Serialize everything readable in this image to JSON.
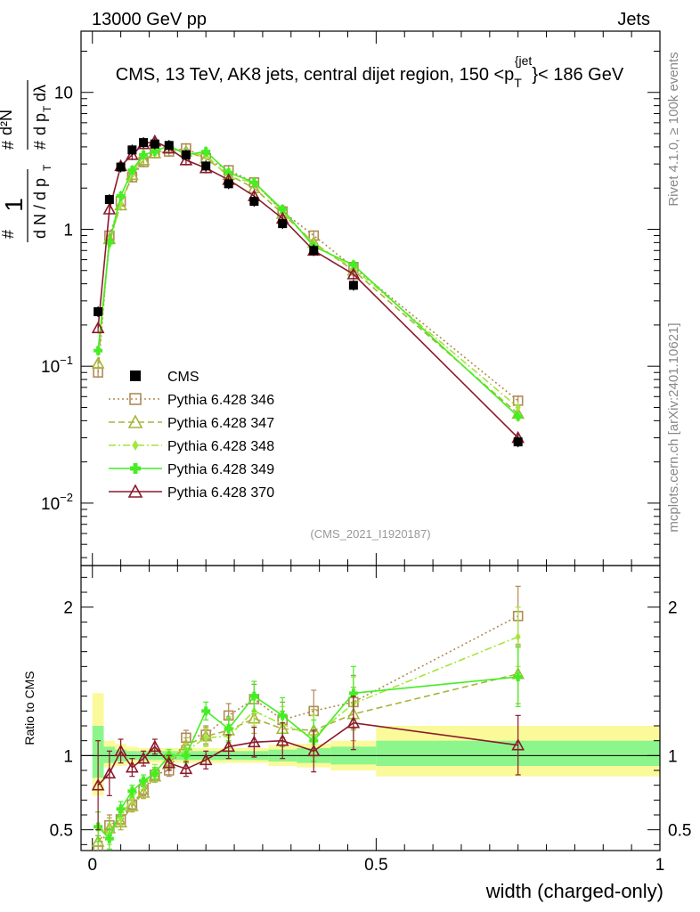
{
  "header": {
    "left": "13000 GeV pp",
    "right": "Jets"
  },
  "side": {
    "rivet": "Rivet 4.1.0, ≥ 100k events",
    "mcplots": "mcplots.cern.ch [arXiv:2401.10621]"
  },
  "colors": {
    "CMS": "#000000",
    "p346": "#b08a55",
    "p347": "#a8b43a",
    "p348": "#a4e63c",
    "p349": "#44ee22",
    "p370": "#8b1a2c",
    "band_inner": "#8cf58c",
    "band_outer": "#fafa9a"
  },
  "chart_data": [
    {
      "type": "line",
      "panel": "main",
      "title": "CMS, 13 TeV, AK8 jets, central dijet region, 150 <p_T^{jet}< 186 GeV",
      "title_parts": {
        "pre": "CMS, 13 TeV, AK8 jets, central dijet region, 150 <p",
        "sub": "T",
        "sup": "{jet",
        "post": "}< 186 GeV"
      },
      "watermark": "(CMS_2021_I1920187)",
      "xlabel": "width (charged-only)",
      "ylabel": "1/dN/dp_T  d²N/dp_T dλ",
      "ylabel_parts": {
        "hash": "#",
        "one": "1",
        "dN": "d N / d p",
        "T": "T",
        "d2N": "d²N",
        "dpT": "d p",
        "dl": "dλ"
      },
      "xlim": [
        -0.02,
        1.0
      ],
      "yscale": "log",
      "ylim": [
        0.0035,
        28
      ],
      "yticks": [
        {
          "value": 0.01,
          "label": "10",
          "exp": "−2"
        },
        {
          "value": 0.1,
          "label": "10",
          "exp": "−1"
        },
        {
          "value": 1,
          "label": "1",
          "exp": ""
        },
        {
          "value": 10,
          "label": "10",
          "exp": ""
        }
      ],
      "series": [
        {
          "key": "CMS",
          "name": "CMS",
          "x": [
            0.01,
            0.03,
            0.05,
            0.07,
            0.09,
            0.11,
            0.135,
            0.165,
            0.2,
            0.24,
            0.285,
            0.335,
            0.39,
            0.46,
            0.75
          ],
          "y": [
            0.25,
            1.65,
            2.85,
            3.8,
            4.3,
            4.2,
            4.1,
            3.5,
            2.9,
            2.15,
            1.6,
            1.1,
            0.7,
            0.39,
            0.028
          ]
        },
        {
          "key": "p346",
          "name": "Pythia 6.428 346",
          "x": [
            0.01,
            0.03,
            0.05,
            0.07,
            0.09,
            0.11,
            0.135,
            0.165,
            0.2,
            0.24,
            0.285,
            0.335,
            0.39,
            0.46,
            0.75
          ],
          "y": [
            0.09,
            0.9,
            1.6,
            2.4,
            3.1,
            3.6,
            3.7,
            3.9,
            3.3,
            2.7,
            2.2,
            1.35,
            0.9,
            0.53,
            0.056
          ]
        },
        {
          "key": "p347",
          "name": "Pythia 6.428 347",
          "x": [
            0.01,
            0.03,
            0.05,
            0.07,
            0.09,
            0.11,
            0.135,
            0.165,
            0.2,
            0.24,
            0.285,
            0.335,
            0.39,
            0.46,
            0.75
          ],
          "y": [
            0.105,
            0.85,
            1.5,
            2.5,
            3.2,
            3.6,
            3.9,
            3.7,
            3.3,
            2.5,
            2.0,
            1.3,
            0.8,
            0.5,
            0.045
          ]
        },
        {
          "key": "p348",
          "name": "Pythia 6.428 348",
          "x": [
            0.01,
            0.03,
            0.05,
            0.07,
            0.09,
            0.11,
            0.135,
            0.165,
            0.2,
            0.24,
            0.285,
            0.335,
            0.39,
            0.46,
            0.75
          ],
          "y": [
            0.13,
            0.78,
            1.55,
            2.6,
            3.4,
            3.8,
            4.0,
            3.6,
            3.5,
            2.4,
            2.2,
            1.35,
            0.78,
            0.52,
            0.05
          ]
        },
        {
          "key": "p349",
          "name": "Pythia 6.428 349",
          "x": [
            0.01,
            0.03,
            0.05,
            0.07,
            0.09,
            0.11,
            0.135,
            0.165,
            0.2,
            0.24,
            0.285,
            0.335,
            0.39,
            0.46,
            0.75
          ],
          "y": [
            0.13,
            0.8,
            1.75,
            2.7,
            3.5,
            3.7,
            4.1,
            3.5,
            3.7,
            2.6,
            2.2,
            1.4,
            0.75,
            0.55,
            0.043
          ]
        },
        {
          "key": "p370",
          "name": "Pythia 6.428 370",
          "x": [
            0.01,
            0.03,
            0.05,
            0.07,
            0.09,
            0.11,
            0.135,
            0.165,
            0.2,
            0.24,
            0.285,
            0.335,
            0.39,
            0.46,
            0.75
          ],
          "y": [
            0.19,
            1.4,
            2.9,
            3.5,
            4.2,
            4.4,
            3.9,
            3.2,
            2.8,
            2.3,
            1.75,
            1.2,
            0.7,
            0.47,
            0.03
          ]
        }
      ]
    },
    {
      "type": "line",
      "panel": "ratio",
      "ylabel": "Ratio to CMS",
      "xlabel": "width (charged-only)",
      "xlim": [
        -0.02,
        1.0
      ],
      "ylim": [
        0.36,
        2.28
      ],
      "yticks": [
        {
          "value": 0.5,
          "label": "0.5"
        },
        {
          "value": 1,
          "label": "1"
        },
        {
          "value": 2,
          "label": "2"
        }
      ],
      "xticks": [
        {
          "value": 0,
          "label": "0"
        },
        {
          "value": 0.5,
          "label": "0.5"
        },
        {
          "value": 1,
          "label": "1"
        }
      ],
      "bands": [
        {
          "x0": 0.0,
          "x1": 0.02,
          "inner": [
            0.85,
            1.2
          ],
          "outer": [
            0.73,
            1.42
          ]
        },
        {
          "x0": 0.02,
          "x1": 0.04,
          "inner": [
            0.95,
            1.06
          ],
          "outer": [
            0.92,
            1.1
          ]
        },
        {
          "x0": 0.04,
          "x1": 0.06,
          "inner": [
            0.96,
            1.04
          ],
          "outer": [
            0.93,
            1.08
          ]
        },
        {
          "x0": 0.06,
          "x1": 0.08,
          "inner": [
            0.97,
            1.03
          ],
          "outer": [
            0.94,
            1.06
          ]
        },
        {
          "x0": 0.08,
          "x1": 0.1,
          "inner": [
            0.97,
            1.03
          ],
          "outer": [
            0.95,
            1.05
          ]
        },
        {
          "x0": 0.1,
          "x1": 0.12,
          "inner": [
            0.97,
            1.03
          ],
          "outer": [
            0.95,
            1.05
          ]
        },
        {
          "x0": 0.12,
          "x1": 0.15,
          "inner": [
            0.97,
            1.03
          ],
          "outer": [
            0.95,
            1.05
          ]
        },
        {
          "x0": 0.15,
          "x1": 0.18,
          "inner": [
            0.97,
            1.03
          ],
          "outer": [
            0.95,
            1.05
          ]
        },
        {
          "x0": 0.18,
          "x1": 0.22,
          "inner": [
            0.97,
            1.03
          ],
          "outer": [
            0.95,
            1.05
          ]
        },
        {
          "x0": 0.22,
          "x1": 0.26,
          "inner": [
            0.97,
            1.03
          ],
          "outer": [
            0.95,
            1.05
          ]
        },
        {
          "x0": 0.26,
          "x1": 0.31,
          "inner": [
            0.97,
            1.03
          ],
          "outer": [
            0.95,
            1.05
          ]
        },
        {
          "x0": 0.31,
          "x1": 0.36,
          "inner": [
            0.96,
            1.04
          ],
          "outer": [
            0.93,
            1.07
          ]
        },
        {
          "x0": 0.36,
          "x1": 0.42,
          "inner": [
            0.95,
            1.05
          ],
          "outer": [
            0.92,
            1.08
          ]
        },
        {
          "x0": 0.42,
          "x1": 0.5,
          "inner": [
            0.94,
            1.06
          ],
          "outer": [
            0.9,
            1.1
          ]
        },
        {
          "x0": 0.5,
          "x1": 1.0,
          "inner": [
            0.93,
            1.1
          ],
          "outer": [
            0.86,
            1.2
          ]
        }
      ],
      "series": [
        {
          "key": "p346",
          "name": "Pythia 6.428 346",
          "x": [
            0.01,
            0.03,
            0.05,
            0.07,
            0.09,
            0.11,
            0.135,
            0.165,
            0.2,
            0.24,
            0.285,
            0.335,
            0.39,
            0.46,
            0.75
          ],
          "y": [
            0.36,
            0.53,
            0.57,
            0.67,
            0.77,
            0.87,
            0.9,
            1.12,
            1.14,
            1.27,
            1.38,
            1.24,
            1.3,
            1.36,
            1.94
          ],
          "err": [
            0.1,
            0.07,
            0.05,
            0.04,
            0.04,
            0.04,
            0.04,
            0.05,
            0.06,
            0.08,
            0.1,
            0.12,
            0.14,
            0.18,
            0.2
          ]
        },
        {
          "key": "p347",
          "name": "Pythia 6.428 347",
          "x": [
            0.01,
            0.03,
            0.05,
            0.07,
            0.09,
            0.11,
            0.135,
            0.165,
            0.2,
            0.24,
            0.285,
            0.335,
            0.39,
            0.46,
            0.75
          ],
          "y": [
            0.42,
            0.51,
            0.55,
            0.66,
            0.75,
            0.86,
            0.95,
            1.07,
            1.13,
            1.17,
            1.25,
            1.18,
            1.17,
            1.28,
            1.55
          ],
          "err": [
            0.1,
            0.07,
            0.05,
            0.04,
            0.04,
            0.04,
            0.04,
            0.05,
            0.06,
            0.08,
            0.1,
            0.12,
            0.14,
            0.18,
            0.2
          ]
        },
        {
          "key": "p348",
          "name": "Pythia 6.428 348",
          "x": [
            0.01,
            0.03,
            0.05,
            0.07,
            0.09,
            0.11,
            0.135,
            0.165,
            0.2,
            0.24,
            0.285,
            0.335,
            0.39,
            0.46,
            0.75
          ],
          "y": [
            0.52,
            0.47,
            0.58,
            0.72,
            0.8,
            0.9,
            0.98,
            1.03,
            1.12,
            1.13,
            1.3,
            1.21,
            1.13,
            1.35,
            1.8
          ],
          "err": [
            0.1,
            0.07,
            0.05,
            0.04,
            0.04,
            0.04,
            0.04,
            0.05,
            0.06,
            0.08,
            0.1,
            0.12,
            0.14,
            0.18,
            0.2
          ]
        },
        {
          "key": "p349",
          "name": "Pythia 6.428 349",
          "x": [
            0.01,
            0.03,
            0.05,
            0.07,
            0.09,
            0.11,
            0.135,
            0.165,
            0.2,
            0.24,
            0.285,
            0.335,
            0.39,
            0.46,
            0.75
          ],
          "y": [
            0.52,
            0.44,
            0.64,
            0.76,
            0.83,
            0.88,
            1.0,
            1.0,
            1.3,
            1.18,
            1.4,
            1.27,
            1.1,
            1.42,
            1.53
          ],
          "err": [
            0.1,
            0.07,
            0.05,
            0.04,
            0.04,
            0.04,
            0.04,
            0.05,
            0.06,
            0.08,
            0.1,
            0.12,
            0.14,
            0.18,
            0.2
          ]
        },
        {
          "key": "p370",
          "name": "Pythia 6.428 370",
          "x": [
            0.01,
            0.03,
            0.05,
            0.07,
            0.09,
            0.11,
            0.135,
            0.165,
            0.2,
            0.24,
            0.285,
            0.335,
            0.39,
            0.46,
            0.75
          ],
          "y": [
            0.8,
            0.88,
            1.03,
            0.92,
            0.98,
            1.06,
            0.95,
            0.91,
            0.97,
            1.06,
            1.09,
            1.1,
            1.03,
            1.22,
            1.07
          ],
          "err": [
            0.3,
            0.15,
            0.08,
            0.06,
            0.05,
            0.05,
            0.05,
            0.05,
            0.06,
            0.08,
            0.1,
            0.12,
            0.14,
            0.18,
            0.2
          ]
        }
      ]
    }
  ]
}
